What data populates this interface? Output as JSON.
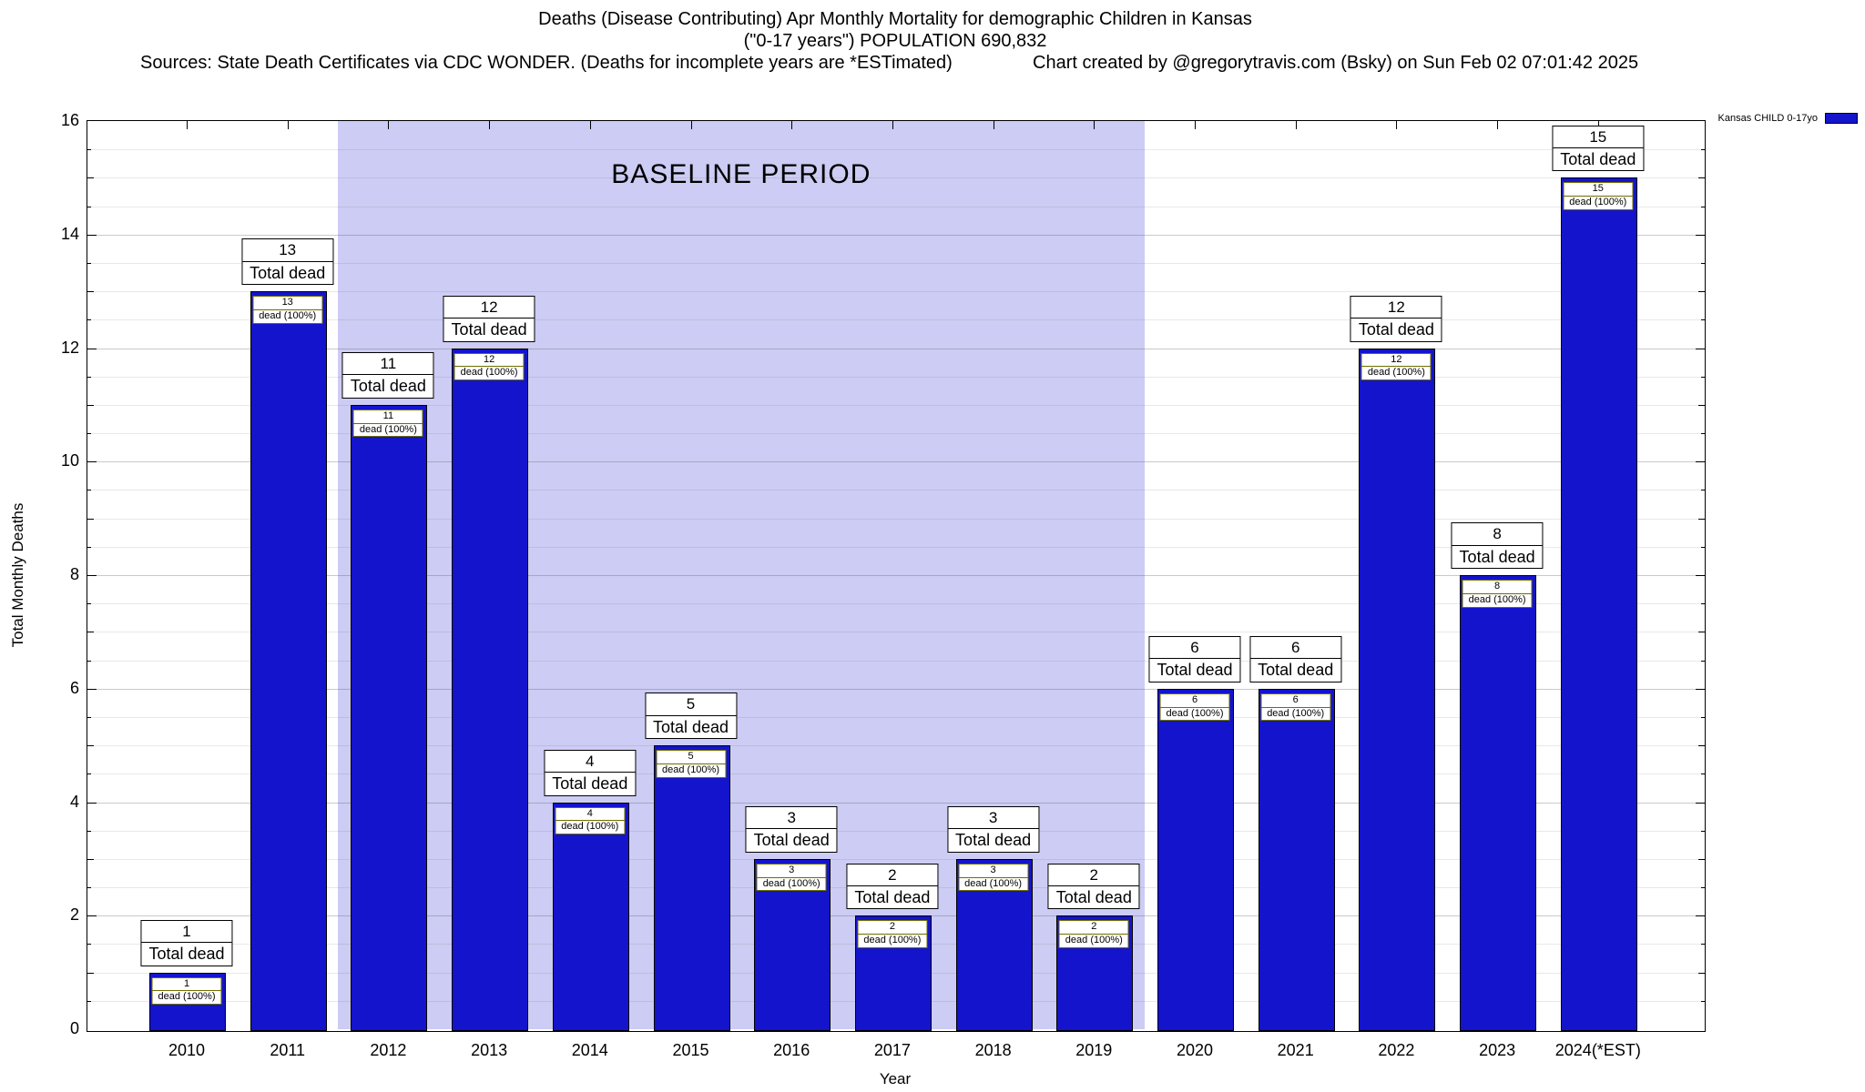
{
  "header": {
    "title_line1": "Deaths (Disease Contributing) Apr Monthly Mortality for demographic Children in Kansas",
    "title_line2": "(\"0-17 years\") POPULATION 690,832",
    "sources": "Sources: State Death Certificates via CDC WONDER. (Deaths for incomplete years are *ESTimated)",
    "credit": "Chart created by @gregorytravis.com (Bsky) on Sun Feb 02 07:01:42 2025"
  },
  "chart_data": {
    "type": "bar",
    "title": "Deaths (Disease Contributing) Apr Monthly Mortality for demographic Children in Kansas (\"0-17 years\") POPULATION 690,832",
    "xlabel": "Year",
    "ylabel": "Total Monthly Deaths",
    "ylim": [
      0,
      16
    ],
    "ytick_step": 2,
    "grid": true,
    "categories": [
      "2010",
      "2011",
      "2012",
      "2013",
      "2014",
      "2015",
      "2016",
      "2017",
      "2018",
      "2019",
      "2020",
      "2021",
      "2022",
      "2023",
      "2024(*EST)"
    ],
    "values": [
      1,
      13,
      11,
      12,
      4,
      5,
      3,
      2,
      3,
      2,
      6,
      6,
      12,
      8,
      15
    ],
    "bar_color": "#1414cc",
    "bar_total_label_suffix": "Total dead",
    "bar_inner_label_suffix": "dead (100%)",
    "baseline_band": {
      "label": "BASELINE PERIOD",
      "from_category": "2012",
      "to_category": "2019",
      "color": "#ccccf4"
    },
    "legend": {
      "label": "Kansas CHILD 0-17yo",
      "position": "top-right",
      "color": "#1414cc"
    }
  }
}
